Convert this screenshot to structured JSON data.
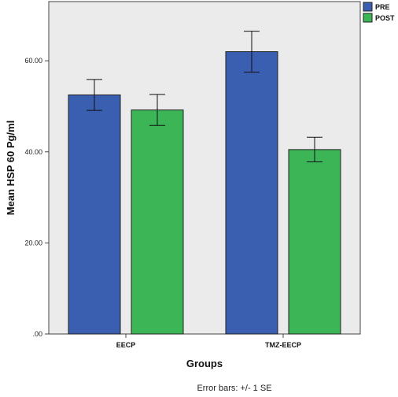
{
  "chart_data": {
    "type": "bar",
    "categories": [
      "EECP",
      "TMZ-EECP"
    ],
    "series": [
      {
        "name": "PRE",
        "values": [
          52.5,
          62.0
        ],
        "se": [
          3.4,
          4.5
        ],
        "color": "#3a5fb0"
      },
      {
        "name": "POST",
        "values": [
          49.2,
          40.5
        ],
        "se": [
          3.4,
          2.7
        ],
        "color": "#3cb556"
      }
    ],
    "xlabel": "Groups",
    "ylabel": "Mean HSP 60 Pg/ml",
    "ylim": [
      0,
      73
    ],
    "yticks": [
      0,
      20,
      40,
      60
    ],
    "ytick_labels": [
      ".00",
      "20.00",
      "40.00",
      "60.00"
    ],
    "legend_position": "top-right-outside",
    "plot_background": "#ebebeb",
    "footnote": "Error bars: +/- 1 SE"
  }
}
